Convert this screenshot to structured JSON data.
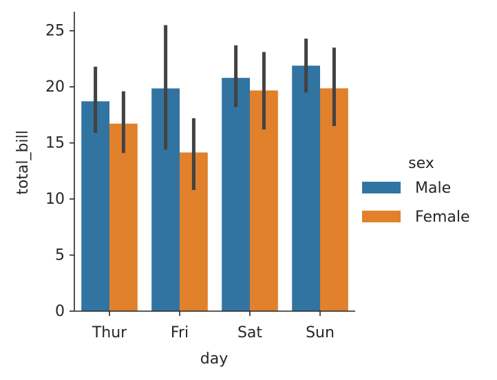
{
  "chart_data": {
    "type": "bar",
    "xlabel": "day",
    "ylabel": "total_bill",
    "categories": [
      "Thur",
      "Fri",
      "Sat",
      "Sun"
    ],
    "ylim": [
      0,
      26.7
    ],
    "yticks": [
      0,
      5,
      10,
      15,
      20,
      25
    ],
    "grid": false,
    "legend": {
      "title": "sex",
      "placement": "right"
    },
    "series": [
      {
        "name": "Male",
        "color": "#3274a1",
        "values": [
          18.71,
          19.86,
          20.8,
          21.89
        ],
        "ci_low": [
          15.9,
          14.4,
          18.2,
          19.5
        ],
        "ci_high": [
          21.8,
          25.5,
          23.7,
          24.3
        ]
      },
      {
        "name": "Female",
        "color": "#e1812c",
        "values": [
          16.72,
          14.15,
          19.68,
          19.87
        ],
        "ci_low": [
          14.1,
          10.8,
          16.2,
          16.5
        ],
        "ci_high": [
          19.6,
          17.2,
          23.1,
          23.5
        ]
      }
    ]
  }
}
